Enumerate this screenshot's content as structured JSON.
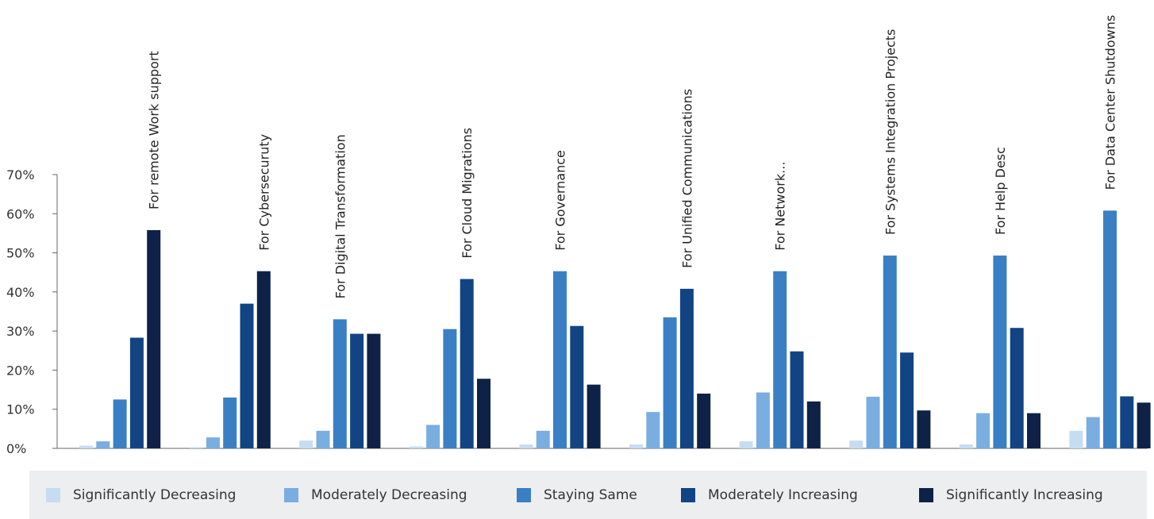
{
  "chart_data": {
    "type": "bar",
    "title": "",
    "xlabel": "",
    "ylabel": "",
    "ylim": [
      0,
      70
    ],
    "yticks": [
      "0%",
      "10%",
      "20%",
      "30%",
      "40%",
      "50%",
      "60%",
      "70%"
    ],
    "grid": false,
    "legend_position": "bottom",
    "categories": [
      "For remote Work support",
      "For Cybersecuruty",
      "For Digital Transformation",
      "For Cloud Migrations",
      "For Governance",
      "For Unified Communications",
      "For Network...",
      "For Systems Integration Projects",
      "For Help Desc",
      "For Data Center Shutdowns"
    ],
    "series": [
      {
        "name": "Significantly Decreasing",
        "color": "#c6dcf1",
        "values": [
          0.7,
          0.3,
          2.0,
          0.5,
          1.0,
          1.0,
          1.8,
          2.0,
          1.0,
          4.5
        ]
      },
      {
        "name": "Moderately Decreasing",
        "color": "#7aade0",
        "values": [
          1.8,
          2.8,
          4.5,
          6.0,
          4.5,
          9.3,
          14.3,
          13.2,
          9.0,
          8.0
        ]
      },
      {
        "name": "Staying Same",
        "color": "#3a7fc3",
        "values": [
          12.5,
          13.0,
          33.0,
          30.5,
          45.3,
          33.5,
          45.3,
          49.3,
          49.3,
          60.8
        ]
      },
      {
        "name": "Moderately Increasing",
        "color": "#124483",
        "values": [
          28.3,
          37.0,
          29.3,
          43.3,
          31.3,
          40.8,
          24.8,
          24.5,
          30.8,
          13.3
        ]
      },
      {
        "name": "Significantly Increasing",
        "color": "#0e2247",
        "values": [
          55.8,
          45.3,
          29.3,
          17.8,
          16.3,
          14.0,
          12.0,
          9.7,
          9.0,
          11.7
        ]
      }
    ]
  }
}
